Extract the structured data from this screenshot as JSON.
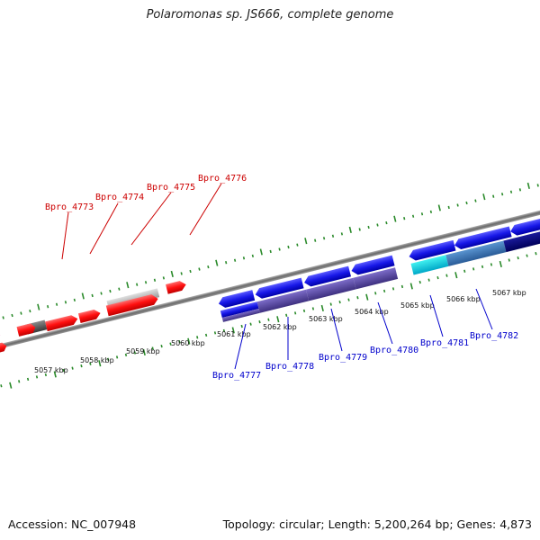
{
  "title": "Polaromonas sp. JS666, complete genome",
  "footer": {
    "accession": "Accession: NC_007948",
    "summary": "Topology: circular; Length: 5,200,264 bp; Genes: 4,873"
  },
  "colors": {
    "backbone": "#8a8a8a",
    "tick": "#2a8a2a",
    "forward_gene": "#ff1a1a",
    "reverse_gene": "#1a1ae6",
    "forward_label": "#cc0000",
    "reverse_label": "#0000cc"
  },
  "scale_labels": [
    "5057 kbp",
    "5058 kbp",
    "5059 kbp",
    "5060 kbp",
    "5061 kbp",
    "5062 kbp",
    "5063 kbp",
    "5064 kbp",
    "5065 kbp",
    "5066 kbp",
    "5067 kbp"
  ],
  "gene_labels_top": [
    "Bpro_4773",
    "Bpro_4774",
    "Bpro_4775",
    "Bpro_4776"
  ],
  "gene_labels_bottom": [
    "Bpro_4777",
    "Bpro_4778",
    "Bpro_4779",
    "Bpro_4780",
    "Bpro_4781",
    "Bpro_4782"
  ]
}
